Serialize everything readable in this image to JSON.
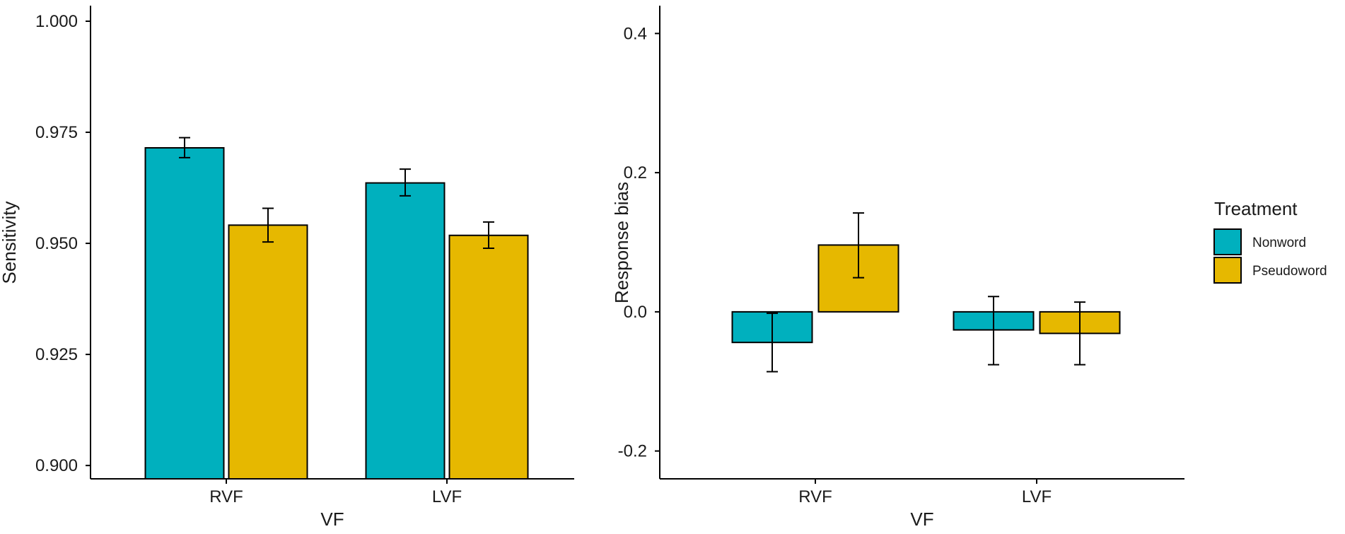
{
  "legend": {
    "title": "Treatment",
    "items": [
      {
        "label": "Nonword",
        "color": "#00B0BE"
      },
      {
        "label": "Pseudoword",
        "color": "#E6B800"
      }
    ]
  },
  "chart_data": [
    {
      "type": "bar",
      "title": "",
      "xlabel": "VF",
      "ylabel": "Sensitivity",
      "categories": [
        "RVF",
        "LVF"
      ],
      "ylim": [
        0.897,
        1.0035
      ],
      "yticks": [
        0.9,
        0.925,
        0.95,
        0.975,
        1.0
      ],
      "ytick_labels": [
        "0.900",
        "0.925",
        "0.950",
        "0.975",
        "1.000"
      ],
      "baseline": 0.897,
      "series": [
        {
          "name": "Nonword",
          "color": "#00B0BE",
          "values": [
            0.9715,
            0.9636
          ],
          "err_low": [
            0.9693,
            0.9607
          ],
          "err_high": [
            0.9738,
            0.9667
          ]
        },
        {
          "name": "Pseudoword",
          "color": "#E6B800",
          "values": [
            0.9541,
            0.9518
          ],
          "err_low": [
            0.9503,
            0.9489
          ],
          "err_high": [
            0.9579,
            0.9548
          ]
        }
      ]
    },
    {
      "type": "bar",
      "title": "",
      "xlabel": "VF",
      "ylabel": "Response bias",
      "categories": [
        "RVF",
        "LVF"
      ],
      "ylim": [
        -0.24,
        0.44
      ],
      "yticks": [
        -0.2,
        0.0,
        0.2,
        0.4
      ],
      "ytick_labels": [
        "-0.2",
        "0.0",
        "0.2",
        "0.4"
      ],
      "baseline": 0,
      "series": [
        {
          "name": "Nonword",
          "color": "#00B0BE",
          "values": [
            -0.044,
            -0.026
          ],
          "err_low": [
            -0.086,
            -0.076
          ],
          "err_high": [
            -0.002,
            0.022
          ]
        },
        {
          "name": "Pseudoword",
          "color": "#E6B800",
          "values": [
            0.096,
            -0.031
          ],
          "err_low": [
            0.049,
            -0.076
          ],
          "err_high": [
            0.142,
            0.014
          ]
        }
      ]
    }
  ]
}
